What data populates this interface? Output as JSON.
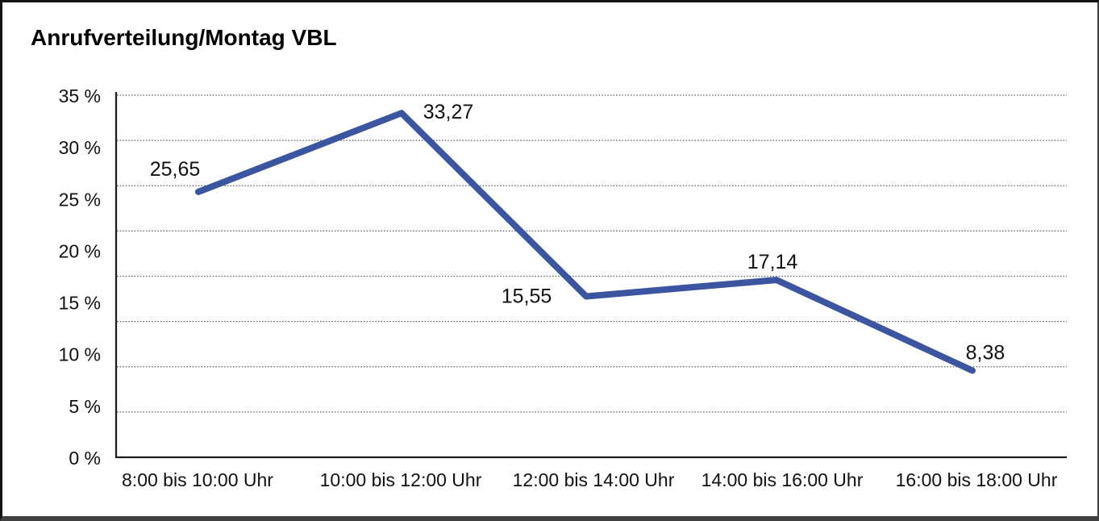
{
  "chart_data": {
    "type": "line",
    "title": "Anrufverteilung/Montag VBL",
    "categories": [
      "8:00 bis 10:00 Uhr",
      "10:00 bis 12:00 Uhr",
      "12:00 bis 14:00 Uhr",
      "14:00 bis 16:00 Uhr",
      "16:00 bis 18:00 Uhr"
    ],
    "values": [
      25.65,
      33.27,
      15.55,
      17.14,
      8.38
    ],
    "value_labels": [
      "25,65",
      "33,27",
      "15,55",
      "17,14",
      "8,38"
    ],
    "yticks": [
      {
        "value": 35,
        "label": "35 %"
      },
      {
        "value": 30,
        "label": "30 %"
      },
      {
        "value": 25,
        "label": "25 %"
      },
      {
        "value": 20,
        "label": "20 %"
      },
      {
        "value": 15,
        "label": "15 %"
      },
      {
        "value": 10,
        "label": "10 %"
      },
      {
        "value": 5,
        "label": "5 %"
      },
      {
        "value": 0,
        "label": "0 %"
      }
    ],
    "ylim": [
      0,
      35
    ],
    "xlabel": "",
    "ylabel": "",
    "legend": "none",
    "grid": "horizontal-dotted",
    "line_color": "#3B55A0",
    "axis_color": "#1e1e1e",
    "gridline_color": "#5a5a5a",
    "text_color": "#111111"
  }
}
